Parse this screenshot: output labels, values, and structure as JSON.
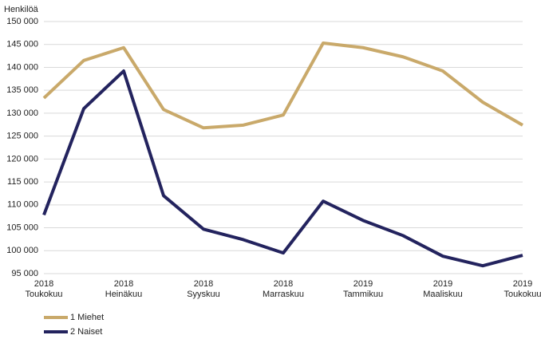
{
  "chart_data": {
    "type": "line",
    "y_axis_label": "Henkilöä",
    "categories": [
      "2018 Toukokuu",
      null,
      "2018 Heinäkuu",
      null,
      "2018 Syyskuu",
      null,
      "2018 Marraskuu",
      null,
      "2019 Tammikuu",
      null,
      "2019 Maaliskuu",
      null,
      "2019 Toukokuu"
    ],
    "series": [
      {
        "name": "1 Miehet",
        "color": "#c9a96a",
        "values": [
          133300,
          141500,
          144300,
          130800,
          126800,
          127400,
          129600,
          145300,
          144300,
          142300,
          139200,
          132400,
          127400
        ]
      },
      {
        "name": "2 Naiset",
        "color": "#23235e",
        "values": [
          107800,
          131000,
          139200,
          112000,
          104700,
          102400,
          99500,
          110800,
          106600,
          103300,
          98800,
          96700,
          99000
        ]
      }
    ],
    "ylim": [
      95000,
      150000
    ],
    "yticks": [
      {
        "value": 95000,
        "label": "95 000"
      },
      {
        "value": 100000,
        "label": "100 000"
      },
      {
        "value": 105000,
        "label": "105 000"
      },
      {
        "value": 110000,
        "label": "110 000"
      },
      {
        "value": 115000,
        "label": "115 000"
      },
      {
        "value": 120000,
        "label": "120 000"
      },
      {
        "value": 125000,
        "label": "125 000"
      },
      {
        "value": 130000,
        "label": "130 000"
      },
      {
        "value": 135000,
        "label": "135 000"
      },
      {
        "value": 140000,
        "label": "140 000"
      },
      {
        "value": 145000,
        "label": "145 000"
      },
      {
        "value": 150000,
        "label": "150 000"
      }
    ],
    "grid": true
  }
}
